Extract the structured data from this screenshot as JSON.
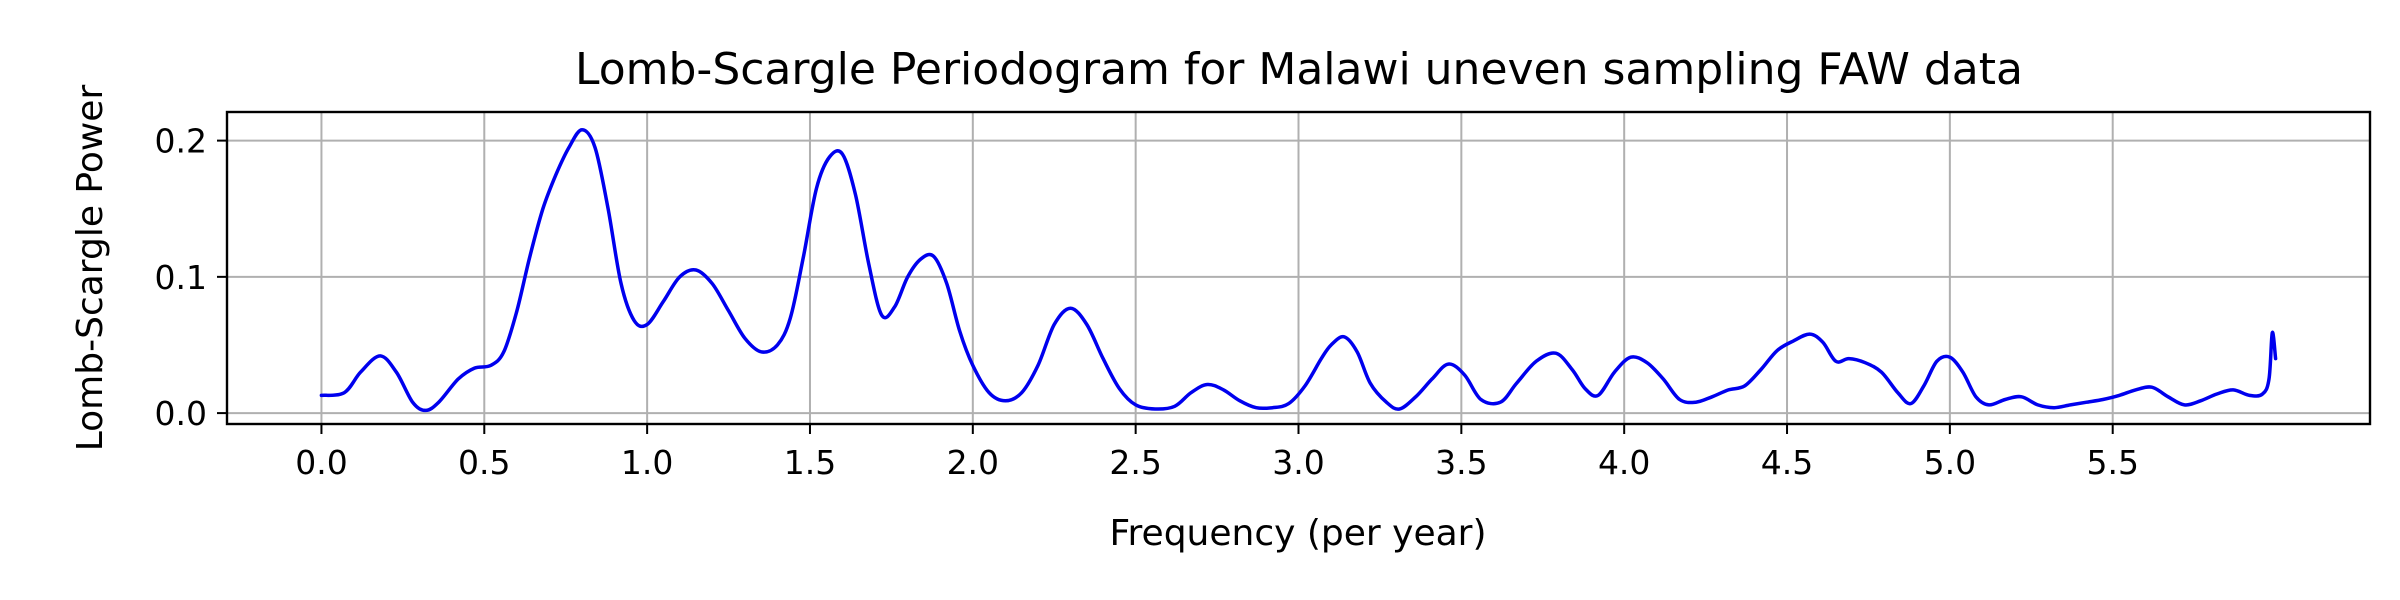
{
  "chart_data": {
    "type": "line",
    "title": "Lomb-Scargle Periodogram for Malawi uneven sampling FAW data",
    "xlabel": "Frequency (per year)",
    "ylabel": "Lomb-Scargle Power",
    "xlim": [
      -0.29,
      6.29
    ],
    "ylim": [
      -0.008,
      0.221
    ],
    "xticks": [
      0.0,
      0.5,
      1.0,
      1.5,
      2.0,
      2.5,
      3.0,
      3.5,
      4.0,
      4.5,
      5.0,
      5.5
    ],
    "xtick_labels": [
      "0.0",
      "0.5",
      "1.0",
      "1.5",
      "2.0",
      "2.5",
      "3.0",
      "3.5",
      "4.0",
      "4.5",
      "5.0",
      "5.5"
    ],
    "yticks": [
      0.0,
      0.1,
      0.2
    ],
    "ytick_labels": [
      "0.0",
      "0.1",
      "0.2"
    ],
    "grid": true,
    "color": "#0000ee",
    "series": [
      {
        "x": [
          0.0,
          0.07,
          0.12,
          0.18,
          0.23,
          0.28,
          0.32,
          0.36,
          0.42,
          0.47,
          0.52,
          0.56,
          0.6,
          0.64,
          0.68,
          0.72,
          0.76,
          0.8,
          0.84,
          0.88,
          0.92,
          0.96,
          1.0,
          1.05,
          1.1,
          1.15,
          1.2,
          1.25,
          1.3,
          1.35,
          1.4,
          1.44,
          1.48,
          1.52,
          1.56,
          1.6,
          1.64,
          1.68,
          1.72,
          1.76,
          1.8,
          1.84,
          1.88,
          1.92,
          1.96,
          2.0,
          2.05,
          2.1,
          2.15,
          2.2,
          2.25,
          2.3,
          2.35,
          2.4,
          2.45,
          2.5,
          2.56,
          2.62,
          2.67,
          2.72,
          2.77,
          2.82,
          2.87,
          2.92,
          2.97,
          3.02,
          3.07,
          3.1,
          3.14,
          3.18,
          3.22,
          3.27,
          3.31,
          3.36,
          3.41,
          3.46,
          3.51,
          3.56,
          3.62,
          3.67,
          3.73,
          3.79,
          3.84,
          3.88,
          3.92,
          3.97,
          4.02,
          4.07,
          4.12,
          4.17,
          4.22,
          4.27,
          4.32,
          4.37,
          4.42,
          4.47,
          4.52,
          4.57,
          4.61,
          4.65,
          4.69,
          4.74,
          4.79,
          4.84,
          4.88,
          4.92,
          4.96,
          5.0,
          5.04,
          5.08,
          5.12,
          5.17,
          5.22,
          5.27,
          5.32,
          5.37,
          5.42,
          5.47,
          5.52,
          5.57,
          5.62,
          5.67,
          5.72,
          5.77,
          5.82,
          5.87,
          5.92,
          5.96,
          5.98,
          5.99,
          6.0
        ],
        "y": [
          0.013,
          0.015,
          0.03,
          0.042,
          0.03,
          0.008,
          0.002,
          0.008,
          0.025,
          0.033,
          0.035,
          0.045,
          0.075,
          0.115,
          0.15,
          0.175,
          0.195,
          0.208,
          0.195,
          0.15,
          0.095,
          0.068,
          0.065,
          0.082,
          0.1,
          0.105,
          0.095,
          0.075,
          0.055,
          0.045,
          0.05,
          0.07,
          0.115,
          0.165,
          0.188,
          0.19,
          0.16,
          0.11,
          0.072,
          0.078,
          0.1,
          0.113,
          0.115,
          0.095,
          0.06,
          0.035,
          0.015,
          0.009,
          0.015,
          0.035,
          0.065,
          0.077,
          0.065,
          0.04,
          0.018,
          0.006,
          0.003,
          0.005,
          0.015,
          0.021,
          0.017,
          0.009,
          0.004,
          0.004,
          0.007,
          0.02,
          0.04,
          0.05,
          0.056,
          0.045,
          0.022,
          0.008,
          0.003,
          0.012,
          0.025,
          0.036,
          0.028,
          0.01,
          0.008,
          0.022,
          0.038,
          0.044,
          0.032,
          0.018,
          0.013,
          0.03,
          0.041,
          0.037,
          0.025,
          0.01,
          0.008,
          0.012,
          0.017,
          0.02,
          0.032,
          0.046,
          0.053,
          0.058,
          0.052,
          0.038,
          0.04,
          0.037,
          0.03,
          0.015,
          0.007,
          0.02,
          0.038,
          0.041,
          0.03,
          0.012,
          0.006,
          0.01,
          0.012,
          0.006,
          0.004,
          0.006,
          0.008,
          0.01,
          0.013,
          0.017,
          0.019,
          0.012,
          0.006,
          0.009,
          0.014,
          0.017,
          0.013,
          0.014,
          0.025,
          0.059,
          0.04
        ]
      }
    ]
  }
}
